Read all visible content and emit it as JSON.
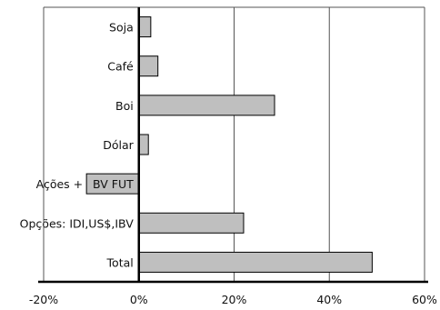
{
  "chart_data": {
    "type": "bar",
    "orientation": "horizontal",
    "categories": [
      "Soja",
      "Café",
      "Boi",
      "Dólar",
      "Ações + BV FUT",
      "Opções: IDI,US$,IBV",
      "Total"
    ],
    "values": [
      2.5,
      4,
      28.5,
      2,
      -11,
      22,
      49
    ],
    "x_tick_labels": [
      "-20%",
      "0%",
      "20%",
      "40%",
      "60%"
    ],
    "x_ticks": [
      -20,
      0,
      20,
      40,
      60
    ],
    "xlim": [
      -20,
      60
    ],
    "title": "",
    "xlabel": "",
    "ylabel": "",
    "grid": "vertical",
    "legend": "none",
    "colors": {
      "bar": "#bfbfbf",
      "bar_stroke": "#000000",
      "grid": "#555555",
      "frame": "#555555"
    }
  }
}
